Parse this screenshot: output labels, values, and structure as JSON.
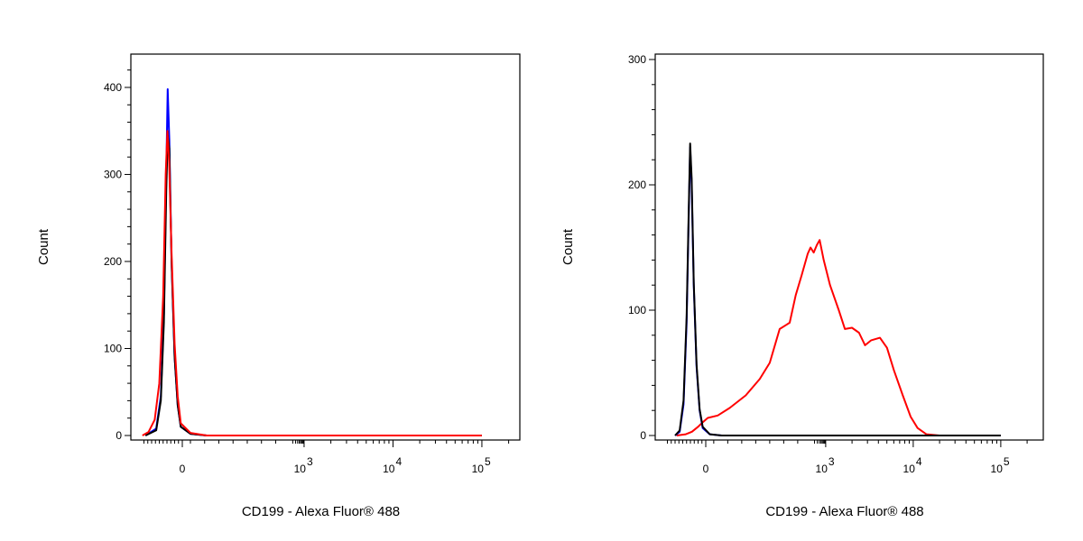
{
  "chart_data": [
    {
      "type": "line",
      "title": "",
      "xlabel": "CD199 - Alexa Fluor® 488",
      "ylabel": "Count",
      "x_scale": "biexponential",
      "x_ticks": [
        {
          "label": "0",
          "exp": ""
        },
        {
          "label": "10",
          "exp": "3"
        },
        {
          "label": "10",
          "exp": "4"
        },
        {
          "label": "10",
          "exp": "5"
        }
      ],
      "y_ticks": [
        "0",
        "100",
        "200",
        "300",
        "400"
      ],
      "ylim": [
        0,
        430
      ],
      "grid": false,
      "legend": "none",
      "series": [
        {
          "color": "#0000ff",
          "points": [
            [
              -2.4,
              0
            ],
            [
              -1.7,
              8
            ],
            [
              -1.4,
              45
            ],
            [
              -1.2,
              140
            ],
            [
              -1.05,
              300
            ],
            [
              -0.95,
              398
            ],
            [
              -0.85,
              340
            ],
            [
              -0.7,
              200
            ],
            [
              -0.5,
              90
            ],
            [
              -0.3,
              35
            ],
            [
              -0.1,
              10
            ],
            [
              0.2,
              2
            ],
            [
              0.6,
              0
            ],
            [
              5,
              0
            ]
          ]
        },
        {
          "color": "#000000",
          "points": [
            [
              -2.4,
              0
            ],
            [
              -1.7,
              6
            ],
            [
              -1.4,
              40
            ],
            [
              -1.2,
              130
            ],
            [
              -1.05,
              280
            ],
            [
              -0.95,
              345
            ],
            [
              -0.85,
              330
            ],
            [
              -0.7,
              200
            ],
            [
              -0.5,
              90
            ],
            [
              -0.3,
              35
            ],
            [
              -0.1,
              10
            ],
            [
              0.2,
              2
            ],
            [
              0.6,
              0
            ],
            [
              5,
              0
            ]
          ]
        },
        {
          "color": "#ff0000",
          "points": [
            [
              -2.6,
              0
            ],
            [
              -2.2,
              4
            ],
            [
              -1.8,
              18
            ],
            [
              -1.5,
              60
            ],
            [
              -1.25,
              160
            ],
            [
              -1.08,
              300
            ],
            [
              -0.97,
              350
            ],
            [
              -0.86,
              315
            ],
            [
              -0.7,
              210
            ],
            [
              -0.5,
              105
            ],
            [
              -0.3,
              45
            ],
            [
              -0.1,
              14
            ],
            [
              0.2,
              3
            ],
            [
              0.6,
              0
            ],
            [
              5,
              0
            ]
          ]
        }
      ]
    },
    {
      "type": "line",
      "title": "",
      "xlabel": "CD199 - Alexa Fluor® 488",
      "ylabel": "Count",
      "x_scale": "biexponential",
      "x_ticks": [
        {
          "label": "0",
          "exp": ""
        },
        {
          "label": "10",
          "exp": "3"
        },
        {
          "label": "10",
          "exp": "4"
        },
        {
          "label": "10",
          "exp": "5"
        }
      ],
      "y_ticks": [
        "0",
        "100",
        "200",
        "300"
      ],
      "ylim": [
        0,
        300
      ],
      "grid": false,
      "legend": "none",
      "series": [
        {
          "color": "#0000ff",
          "points": [
            [
              -2.0,
              0
            ],
            [
              -1.7,
              3
            ],
            [
              -1.45,
              25
            ],
            [
              -1.25,
              90
            ],
            [
              -1.12,
              170
            ],
            [
              -1.02,
              230
            ],
            [
              -0.92,
              200
            ],
            [
              -0.78,
              120
            ],
            [
              -0.6,
              55
            ],
            [
              -0.4,
              20
            ],
            [
              -0.2,
              6
            ],
            [
              0.1,
              1
            ],
            [
              0.4,
              0
            ],
            [
              5,
              0
            ]
          ]
        },
        {
          "color": "#000000",
          "points": [
            [
              -2.0,
              0
            ],
            [
              -1.7,
              4
            ],
            [
              -1.45,
              28
            ],
            [
              -1.25,
              95
            ],
            [
              -1.12,
              175
            ],
            [
              -1.02,
              233
            ],
            [
              -0.92,
              205
            ],
            [
              -0.78,
              122
            ],
            [
              -0.6,
              57
            ],
            [
              -0.4,
              21
            ],
            [
              -0.2,
              7
            ],
            [
              0.1,
              1
            ],
            [
              0.4,
              0
            ],
            [
              5,
              0
            ]
          ]
        },
        {
          "color": "#ff0000",
          "points": [
            [
              -1.9,
              0
            ],
            [
              -1.3,
              1
            ],
            [
              -0.9,
              3
            ],
            [
              -0.5,
              7
            ],
            [
              -0.25,
              10
            ],
            [
              0.05,
              14
            ],
            [
              0.3,
              16
            ],
            [
              0.6,
              22
            ],
            [
              1.0,
              32
            ],
            [
              1.35,
              45
            ],
            [
              1.6,
              58
            ],
            [
              1.85,
              85
            ],
            [
              2.0,
              88
            ],
            [
              2.1,
              90
            ],
            [
              2.25,
              112
            ],
            [
              2.4,
              128
            ],
            [
              2.55,
              145
            ],
            [
              2.62,
              150
            ],
            [
              2.7,
              146
            ],
            [
              2.78,
              152
            ],
            [
              2.85,
              156
            ],
            [
              2.95,
              140
            ],
            [
              3.05,
              120
            ],
            [
              3.15,
              100
            ],
            [
              3.22,
              85
            ],
            [
              3.3,
              86
            ],
            [
              3.38,
              82
            ],
            [
              3.45,
              72
            ],
            [
              3.52,
              76
            ],
            [
              3.62,
              78
            ],
            [
              3.7,
              70
            ],
            [
              3.78,
              52
            ],
            [
              3.88,
              32
            ],
            [
              3.97,
              15
            ],
            [
              4.05,
              6
            ],
            [
              4.15,
              1
            ],
            [
              4.3,
              0
            ],
            [
              5,
              0
            ]
          ]
        }
      ]
    }
  ]
}
